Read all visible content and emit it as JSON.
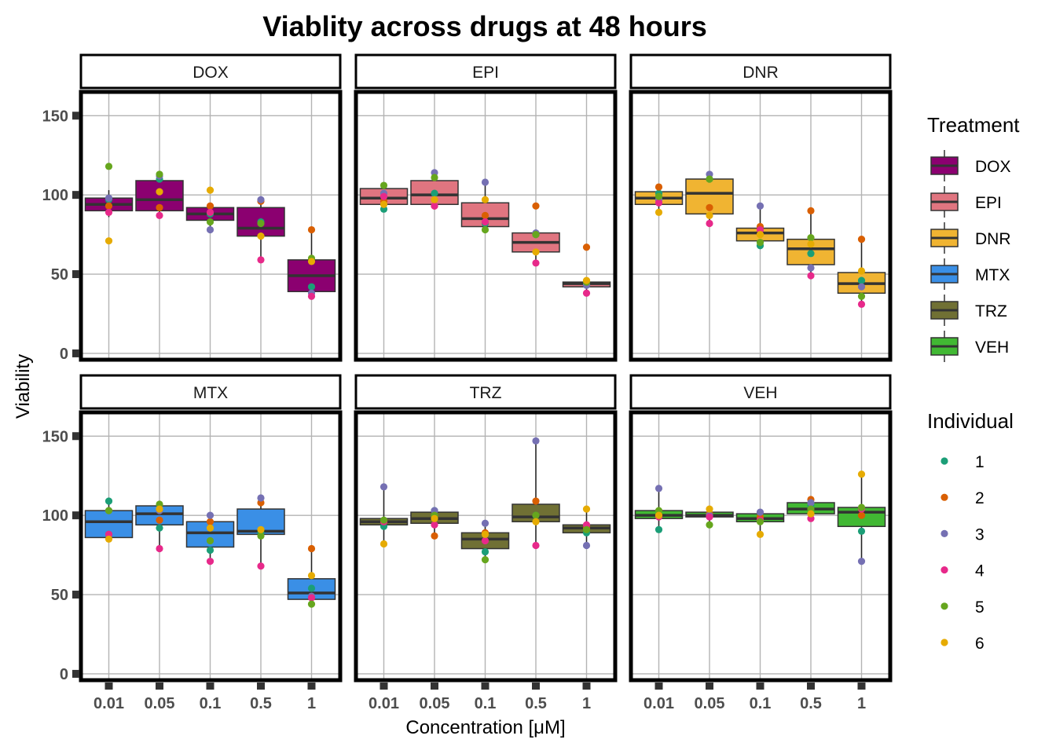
{
  "chart_data": {
    "type": "boxplot",
    "title": "Viablity across drugs at 48 hours",
    "xlabel": "Concentration [μM]",
    "ylabel": "Viability",
    "ylim": [
      -4,
      165
    ],
    "yticks": [
      0,
      50,
      100,
      150
    ],
    "categories": [
      "0.01",
      "0.05",
      "0.1",
      "0.5",
      "1"
    ],
    "legend_treatment": {
      "title": "Treatment",
      "entries": [
        {
          "name": "DOX",
          "color": "#8B0070"
        },
        {
          "name": "EPI",
          "color": "#E07580"
        },
        {
          "name": "DNR",
          "color": "#F0B432"
        },
        {
          "name": "MTX",
          "color": "#3A8FE6"
        },
        {
          "name": "TRZ",
          "color": "#707034"
        },
        {
          "name": "VEH",
          "color": "#41B833"
        }
      ]
    },
    "legend_individual": {
      "title": "Individual",
      "entries": [
        {
          "name": "1",
          "color": "#1B9E77"
        },
        {
          "name": "2",
          "color": "#D95F02"
        },
        {
          "name": "3",
          "color": "#7570B3"
        },
        {
          "name": "4",
          "color": "#E7298A"
        },
        {
          "name": "5",
          "color": "#66A61E"
        },
        {
          "name": "6",
          "color": "#E6AB02"
        }
      ]
    },
    "panels": [
      {
        "name": "DOX",
        "color": "#8B0070",
        "boxes": [
          {
            "q1": 90,
            "median": 94,
            "q3": 98,
            "low": 86,
            "high": 103
          },
          {
            "q1": 90,
            "median": 97,
            "q3": 109,
            "low": 87,
            "high": 114
          },
          {
            "q1": 84,
            "median": 88,
            "q3": 92,
            "low": 78,
            "high": 93
          },
          {
            "q1": 74,
            "median": 79,
            "q3": 92,
            "low": 59,
            "high": 97
          },
          {
            "q1": 39,
            "median": 49,
            "q3": 59,
            "low": 37,
            "high": 78
          }
        ],
        "points": [
          [
            97,
            93,
            98,
            89,
            118,
            71
          ],
          [
            110,
            92,
            112,
            87,
            113,
            102
          ],
          [
            88,
            93,
            78,
            89,
            83,
            103
          ],
          [
            83,
            96,
            97,
            59,
            82,
            74
          ],
          [
            42,
            78,
            38,
            36,
            60,
            58
          ]
        ]
      },
      {
        "name": "EPI",
        "color": "#E07580",
        "boxes": [
          {
            "q1": 94,
            "median": 98,
            "q3": 104,
            "low": 91,
            "high": 107
          },
          {
            "q1": 94,
            "median": 100,
            "q3": 109,
            "low": 93,
            "high": 114
          },
          {
            "q1": 80,
            "median": 85,
            "q3": 95,
            "low": 78,
            "high": 108
          },
          {
            "q1": 64,
            "median": 70,
            "q3": 76,
            "low": 58,
            "high": 76
          },
          {
            "q1": 42,
            "median": 44,
            "q3": 45,
            "low": 38,
            "high": 46
          }
        ],
        "points": [
          [
            91,
            96,
            101,
            99,
            106,
            94
          ],
          [
            101,
            93,
            114,
            93,
            111,
            97
          ],
          [
            82,
            87,
            108,
            83,
            78,
            97
          ],
          [
            75,
            93,
            76,
            57,
            75,
            64
          ],
          [
            43,
            67,
            43,
            38,
            45,
            46
          ]
        ]
      },
      {
        "name": "DNR",
        "color": "#F0B432",
        "boxes": [
          {
            "q1": 94,
            "median": 98,
            "q3": 102,
            "low": 90,
            "high": 105
          },
          {
            "q1": 88,
            "median": 101,
            "q3": 110,
            "low": 82,
            "high": 113
          },
          {
            "q1": 71,
            "median": 76,
            "q3": 79,
            "low": 68,
            "high": 93
          },
          {
            "q1": 56,
            "median": 66,
            "q3": 72,
            "low": 49,
            "high": 90
          },
          {
            "q1": 38,
            "median": 44,
            "q3": 51,
            "low": 31,
            "high": 72
          }
        ],
        "points": [
          [
            101,
            105,
            97,
            95,
            99,
            89
          ],
          [
            110,
            92,
            113,
            82,
            110,
            87
          ],
          [
            68,
            80,
            93,
            78,
            70,
            75
          ],
          [
            63,
            90,
            54,
            49,
            73,
            69
          ],
          [
            46,
            72,
            42,
            31,
            36,
            52
          ]
        ]
      },
      {
        "name": "MTX",
        "color": "#3A8FE6",
        "boxes": [
          {
            "q1": 86,
            "median": 96,
            "q3": 103,
            "low": 85,
            "high": 109
          },
          {
            "q1": 94,
            "median": 101,
            "q3": 106,
            "low": 79,
            "high": 107
          },
          {
            "q1": 80,
            "median": 89,
            "q3": 96,
            "low": 71,
            "high": 100
          },
          {
            "q1": 88,
            "median": 90,
            "q3": 104,
            "low": 68,
            "high": 111
          },
          {
            "q1": 47,
            "median": 51,
            "q3": 60,
            "low": 44,
            "high": 79
          }
        ],
        "points": [
          [
            109,
            88,
            103,
            88,
            103,
            85
          ],
          [
            92,
            97,
            103,
            79,
            107,
            104
          ],
          [
            78,
            96,
            100,
            71,
            84,
            92
          ],
          [
            89,
            108,
            111,
            68,
            87,
            91
          ],
          [
            54,
            79,
            49,
            48,
            44,
            62
          ]
        ]
      },
      {
        "name": "TRZ",
        "color": "#707034",
        "boxes": [
          {
            "q1": 94,
            "median": 96,
            "q3": 98,
            "low": 82,
            "high": 118
          },
          {
            "q1": 95,
            "median": 98,
            "q3": 102,
            "low": 87,
            "high": 104
          },
          {
            "q1": 79,
            "median": 85,
            "q3": 89,
            "low": 72,
            "high": 95
          },
          {
            "q1": 96,
            "median": 99,
            "q3": 107,
            "low": 81,
            "high": 147
          },
          {
            "q1": 89,
            "median": 92,
            "q3": 94,
            "low": 81,
            "high": 104
          }
        ],
        "points": [
          [
            93,
            96,
            118,
            96,
            97,
            82
          ],
          [
            103,
            87,
            103,
            94,
            100,
            98
          ],
          [
            77,
            89,
            95,
            84,
            72,
            88
          ],
          [
            100,
            109,
            147,
            81,
            100,
            96
          ],
          [
            89,
            92,
            81,
            94,
            91,
            104
          ]
        ]
      },
      {
        "name": "VEH",
        "color": "#41B833",
        "boxes": [
          {
            "q1": 98,
            "median": 100,
            "q3": 103,
            "low": 91,
            "high": 117
          },
          {
            "q1": 99,
            "median": 100,
            "q3": 102,
            "low": 94,
            "high": 104
          },
          {
            "q1": 96,
            "median": 98,
            "q3": 101,
            "low": 88,
            "high": 102
          },
          {
            "q1": 101,
            "median": 104,
            "q3": 108,
            "low": 98,
            "high": 111
          },
          {
            "q1": 93,
            "median": 102,
            "q3": 105,
            "low": 71,
            "high": 126
          }
        ],
        "points": [
          [
            91,
            100,
            117,
            99,
            103,
            100
          ],
          [
            100,
            101,
            100,
            99,
            94,
            104
          ],
          [
            97,
            99,
            102,
            97,
            96,
            88
          ],
          [
            106,
            110,
            108,
            98,
            104,
            101
          ],
          [
            90,
            100,
            71,
            104,
            105,
            126
          ]
        ]
      }
    ]
  }
}
